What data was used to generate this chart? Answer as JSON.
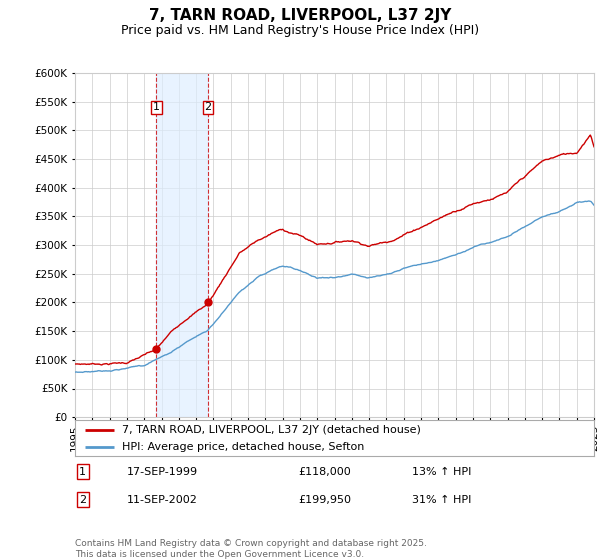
{
  "title": "7, TARN ROAD, LIVERPOOL, L37 2JY",
  "subtitle": "Price paid vs. HM Land Registry's House Price Index (HPI)",
  "ylim": [
    0,
    600000
  ],
  "yticks": [
    0,
    50000,
    100000,
    150000,
    200000,
    250000,
    300000,
    350000,
    400000,
    450000,
    500000,
    550000,
    600000
  ],
  "xlim_left": 1995,
  "xlim_right": 2025,
  "line1_color": "#cc0000",
  "line2_color": "#5599cc",
  "line1_label": "7, TARN ROAD, LIVERPOOL, L37 2JY (detached house)",
  "line2_label": "HPI: Average price, detached house, Sefton",
  "sale1_date_x": 1999.71,
  "sale1_price": 118000,
  "sale2_date_x": 2002.69,
  "sale2_price": 199950,
  "sale1_text": "17-SEP-1999",
  "sale1_amount": "£118,000",
  "sale1_hpi": "13% ↑ HPI",
  "sale2_text": "11-SEP-2002",
  "sale2_amount": "£199,950",
  "sale2_hpi": "31% ↑ HPI",
  "background_color": "#ffffff",
  "grid_color": "#cccccc",
  "shade_color": "#ddeeff",
  "footnote": "Contains HM Land Registry data © Crown copyright and database right 2025.\nThis data is licensed under the Open Government Licence v3.0.",
  "title_fontsize": 11,
  "subtitle_fontsize": 9,
  "tick_fontsize": 7.5,
  "legend_fontsize": 8,
  "footnote_fontsize": 6.5,
  "annot_fontsize": 8,
  "table_fontsize": 8
}
